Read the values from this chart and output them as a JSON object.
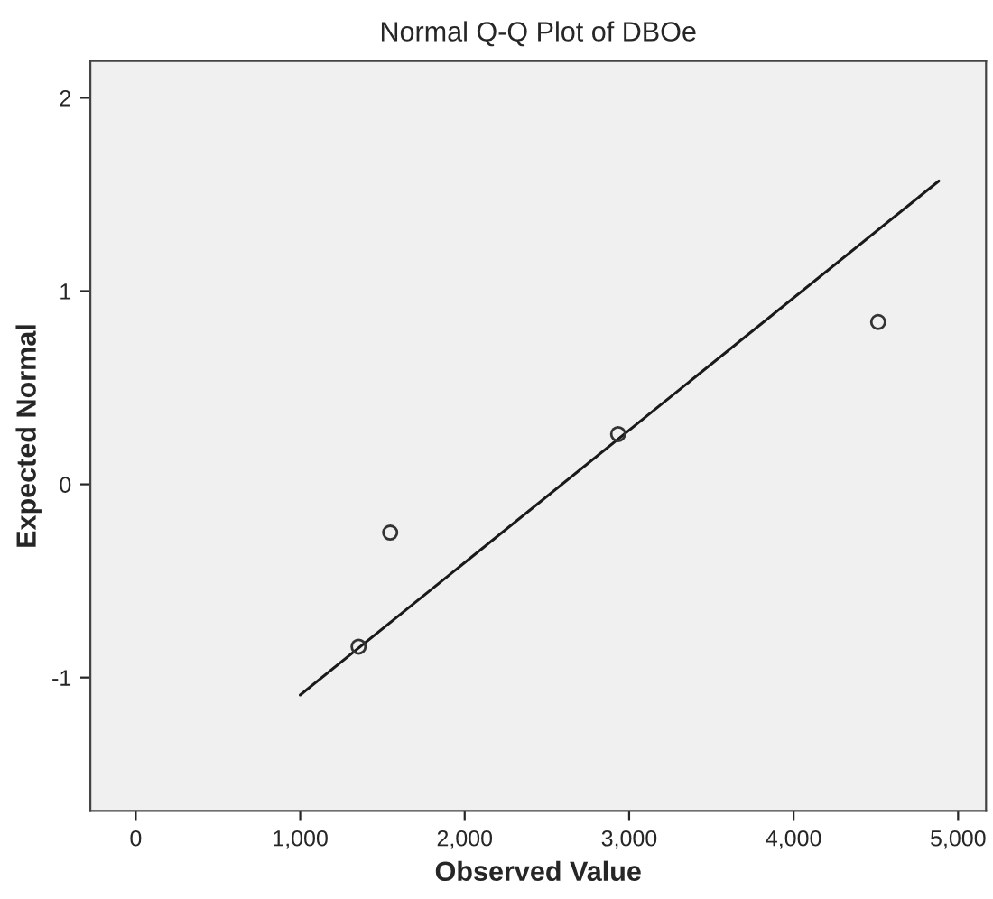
{
  "chart_data": {
    "type": "scatter",
    "title": "Normal Q-Q Plot of DBOe",
    "xlabel": "Observed Value",
    "ylabel": "Expected Normal",
    "series": [
      {
        "color": "#333333",
        "x": [
          1355,
          1547,
          2933,
          4514
        ],
        "values": [
          -0.84,
          -0.25,
          0.26,
          0.84
        ],
        "marker": "circle"
      },
      {
        "type": "line",
        "color": "#1a1a1a",
        "x": [
          1000,
          4883
        ],
        "values": [
          -1.09,
          1.57
        ],
        "marker": "none"
      }
    ],
    "xlim": [
      -276,
      5170
    ],
    "ylim": [
      -1.69,
      2.19
    ],
    "xticks": [
      0,
      {
        "value": 1000,
        "label": "1,000"
      },
      {
        "value": 2000,
        "label": "2,000"
      },
      {
        "value": 3000,
        "label": "3,000"
      },
      {
        "value": 4000,
        "label": "4,000"
      },
      {
        "value": 5000,
        "label": "5,000"
      }
    ],
    "yticks": [
      {
        "value": -1,
        "label": "-1"
      },
      0,
      1,
      2
    ],
    "grid": false,
    "legend": false
  }
}
